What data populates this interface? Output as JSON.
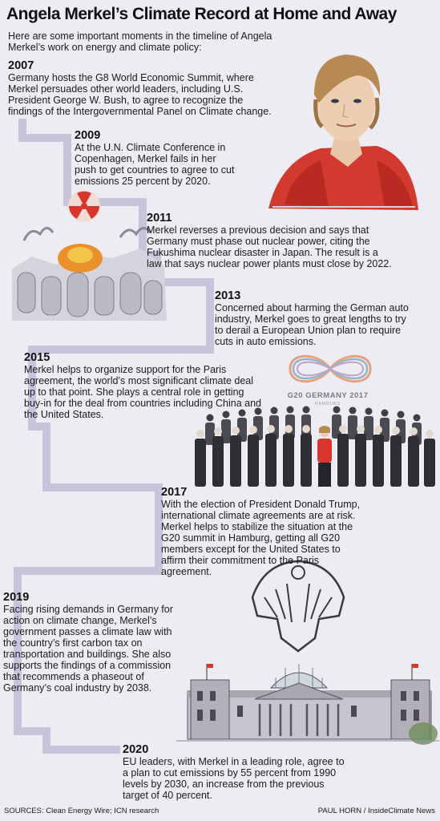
{
  "title": "Angela Merkel’s Climate Record at Home and Away",
  "intro": "Here are some important moments in the timeline of Angela Merkel’s work on energy and climate policy:",
  "timeline": [
    {
      "year": "2007",
      "text": "Germany hosts the G8 World Economic Summit, where Merkel persuades other world leaders, including U.S. President George W. Bush, to agree to recognize the findings of the Intergovernmental Panel on Climate change."
    },
    {
      "year": "2009",
      "text": "At the U.N. Climate Conference in Copenhagen, Merkel fails in her push to get countries to agree to cut emissions 25 percent by 2020."
    },
    {
      "year": "2011",
      "text": "Merkel reverses a previous decision and says that Germany must phase out nuclear power, citing the Fukushima nuclear disaster in Japan. The result is a law that says nuclear power plants must close by 2022."
    },
    {
      "year": "2013",
      "text": "Concerned about harming the German auto industry, Merkel goes to great lengths to try to derail a European Union plan to require cuts in auto emissions."
    },
    {
      "year": "2015",
      "text": "Merkel helps to organize support for the Paris agreement, the world’s most significant climate deal up to that point. She plays a central role in getting buy-in for the deal from countries including China and the United States."
    },
    {
      "year": "2017",
      "text": "With the election of President Donald Trump, international climate agreements are at risk. Merkel helps to stabilize the situation at the G20 summit in Hamburg, getting all G20 members except for the United States to affirm their commitment to the Paris agreement."
    },
    {
      "year": "2019",
      "text": "Facing rising demands in Germany for action on climate change, Merkel’s government passes a climate law with the country’s first carbon tax on transportation and buildings. She also supports the findings of a commission that recommends a phaseout of Germany’s coal industry by 2038."
    },
    {
      "year": "2020",
      "text": "EU leaders, with Merkel in a leading role, agree to a plan to cut emissions by 55 percent from 1990 levels by 2030, an increase from the previous target of 40 percent."
    }
  ],
  "g20_logo": {
    "text": "G20 GERMANY 2017",
    "subtext": "HAMBURG"
  },
  "footer": {
    "sources": "SOURCES: Clean Energy Wire; ICN research",
    "credit": "PAUL HORN / InsideClimate News"
  },
  "colors": {
    "background": "#eeecf3",
    "connector": "#c9c3dc",
    "accent_red": "#d9362b"
  }
}
